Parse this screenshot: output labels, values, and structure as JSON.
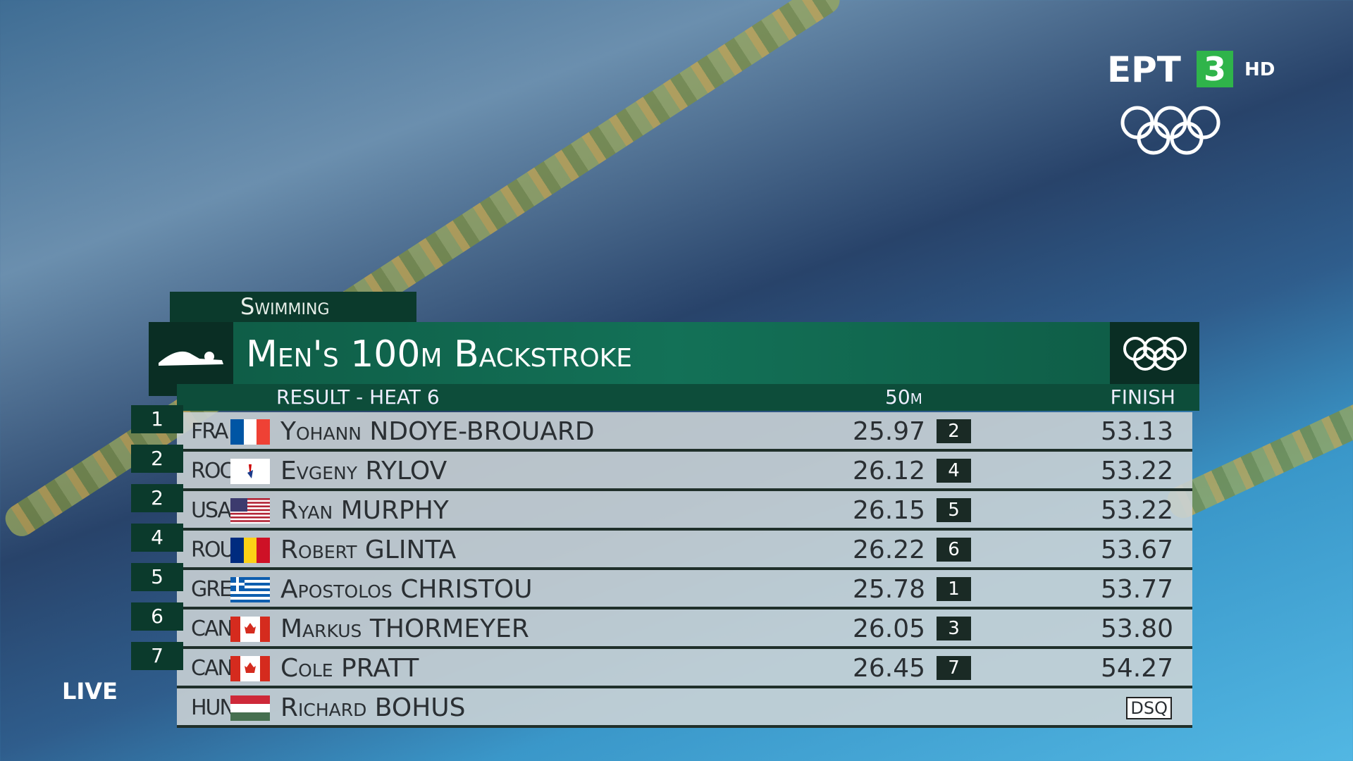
{
  "broadcaster": {
    "name": "ΕΡΤ",
    "channel": "3",
    "quality": "HD"
  },
  "live": "LIVE",
  "results": {
    "sport": "Swimming",
    "event": "Men's 100m Backstroke",
    "phase": "RESULT - HEAT 6",
    "columns": {
      "split": "50m",
      "finish": "FINISH"
    },
    "rows": [
      {
        "rank": "1",
        "noc": "FRA",
        "name": "Yohann NDOYE-BROUARD",
        "split": "25.97",
        "split_rank": "2",
        "finish": "53.13"
      },
      {
        "rank": "2",
        "noc": "ROC",
        "name": "Evgeny RYLOV",
        "split": "26.12",
        "split_rank": "4",
        "finish": "53.22"
      },
      {
        "rank": "2",
        "noc": "USA",
        "name": "Ryan MURPHY",
        "split": "26.15",
        "split_rank": "5",
        "finish": "53.22"
      },
      {
        "rank": "4",
        "noc": "ROU",
        "name": "Robert GLINTA",
        "split": "26.22",
        "split_rank": "6",
        "finish": "53.67"
      },
      {
        "rank": "5",
        "noc": "GRE",
        "name": "Apostolos CHRISTOU",
        "split": "25.78",
        "split_rank": "1",
        "finish": "53.77"
      },
      {
        "rank": "6",
        "noc": "CAN",
        "name": "Markus THORMEYER",
        "split": "26.05",
        "split_rank": "3",
        "finish": "53.80"
      },
      {
        "rank": "7",
        "noc": "CAN",
        "name": "Cole PRATT",
        "split": "26.45",
        "split_rank": "7",
        "finish": "54.27"
      },
      {
        "noc": "HUN",
        "name": "Richard BOHUS",
        "finish": "DSQ"
      }
    ]
  }
}
